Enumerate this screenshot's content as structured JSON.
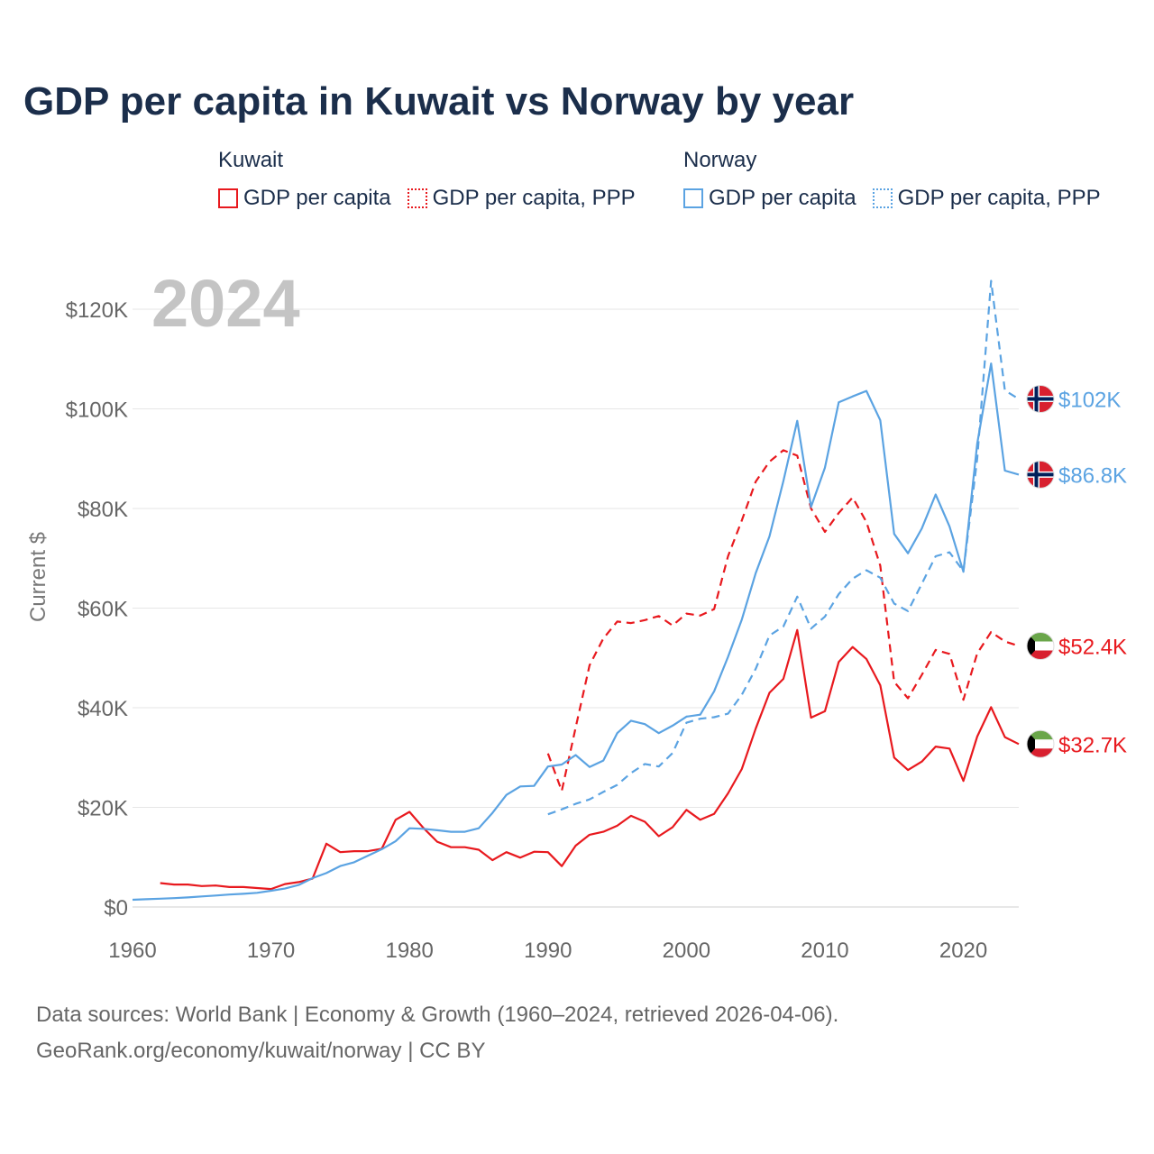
{
  "title": "GDP per capita in Kuwait vs Norway by year",
  "legend": [
    {
      "country": "Kuwait",
      "items": [
        "GDP per capita",
        "GDP per capita, PPP"
      ],
      "color": "#e8191e"
    },
    {
      "country": "Norway",
      "items": [
        "GDP per capita",
        "GDP per capita, PPP"
      ],
      "color": "#5ba3e2"
    }
  ],
  "year_watermark": "2024",
  "footer": {
    "line1": "Data sources: World Bank | Economy & Growth (1960–2024, retrieved 2026-04-06).",
    "line2": "GeoRank.org/economy/kuwait/norway | CC BY"
  },
  "chart_data": {
    "type": "line",
    "title": "GDP per capita in Kuwait vs Norway by year",
    "xlabel": "",
    "ylabel": "Current $",
    "xlim": [
      1960,
      2024
    ],
    "ylim": [
      0,
      120000
    ],
    "x_ticks": [
      1960,
      1970,
      1980,
      1990,
      2000,
      2010,
      2020
    ],
    "x_tick_labels": [
      "1960",
      "1970",
      "1980",
      "1990",
      "2000",
      "2010",
      "2020"
    ],
    "y_ticks": [
      0,
      20000,
      40000,
      60000,
      80000,
      100000,
      120000
    ],
    "y_tick_labels": [
      "$0",
      "$20K",
      "$40K",
      "$60K",
      "$80K",
      "$100K",
      "$120K"
    ],
    "series": [
      {
        "name": "Kuwait GDP per capita",
        "color": "#e8191e",
        "dash": "solid",
        "end_label": "$32.7K",
        "points": [
          [
            1962,
            4800
          ],
          [
            1963,
            4500
          ],
          [
            1964,
            4500
          ],
          [
            1965,
            4200
          ],
          [
            1966,
            4300
          ],
          [
            1967,
            4000
          ],
          [
            1968,
            4000
          ],
          [
            1969,
            3800
          ],
          [
            1970,
            3600
          ],
          [
            1971,
            4600
          ],
          [
            1972,
            5000
          ],
          [
            1973,
            5700
          ],
          [
            1974,
            12700
          ],
          [
            1975,
            11000
          ],
          [
            1976,
            11200
          ],
          [
            1977,
            11200
          ],
          [
            1978,
            11700
          ],
          [
            1979,
            17500
          ],
          [
            1980,
            19100
          ],
          [
            1981,
            15900
          ],
          [
            1982,
            13100
          ],
          [
            1983,
            12000
          ],
          [
            1984,
            12000
          ],
          [
            1985,
            11500
          ],
          [
            1986,
            9400
          ],
          [
            1987,
            11000
          ],
          [
            1988,
            9900
          ],
          [
            1989,
            11100
          ],
          [
            1990,
            11000
          ],
          [
            1991,
            8200
          ],
          [
            1992,
            12300
          ],
          [
            1993,
            14500
          ],
          [
            1994,
            15100
          ],
          [
            1995,
            16300
          ],
          [
            1996,
            18300
          ],
          [
            1997,
            17100
          ],
          [
            1998,
            14200
          ],
          [
            1999,
            16000
          ],
          [
            2000,
            19500
          ],
          [
            2001,
            17500
          ],
          [
            2002,
            18700
          ],
          [
            2003,
            22800
          ],
          [
            2004,
            27700
          ],
          [
            2005,
            35800
          ],
          [
            2006,
            43000
          ],
          [
            2007,
            45800
          ],
          [
            2008,
            55600
          ],
          [
            2009,
            38000
          ],
          [
            2010,
            39300
          ],
          [
            2011,
            49200
          ],
          [
            2012,
            52200
          ],
          [
            2013,
            49800
          ],
          [
            2014,
            44500
          ],
          [
            2015,
            30000
          ],
          [
            2016,
            27500
          ],
          [
            2017,
            29200
          ],
          [
            2018,
            32200
          ],
          [
            2019,
            31800
          ],
          [
            2020,
            25300
          ],
          [
            2021,
            34200
          ],
          [
            2022,
            40100
          ],
          [
            2023,
            34100
          ],
          [
            2024,
            32700
          ]
        ]
      },
      {
        "name": "Kuwait GDP per capita, PPP",
        "color": "#e8191e",
        "dash": "dashed",
        "end_label": "$52.4K",
        "points": [
          [
            1990,
            30800
          ],
          [
            1991,
            23300
          ],
          [
            1992,
            36000
          ],
          [
            1993,
            48500
          ],
          [
            1994,
            53900
          ],
          [
            1995,
            57300
          ],
          [
            1996,
            57000
          ],
          [
            1997,
            57600
          ],
          [
            1998,
            58400
          ],
          [
            1999,
            56500
          ],
          [
            2000,
            58900
          ],
          [
            2001,
            58500
          ],
          [
            2002,
            59800
          ],
          [
            2003,
            70400
          ],
          [
            2004,
            77600
          ],
          [
            2005,
            85400
          ],
          [
            2006,
            89400
          ],
          [
            2007,
            91700
          ],
          [
            2008,
            90600
          ],
          [
            2009,
            80000
          ],
          [
            2010,
            75300
          ],
          [
            2011,
            79100
          ],
          [
            2012,
            82200
          ],
          [
            2013,
            77300
          ],
          [
            2014,
            68500
          ],
          [
            2015,
            45200
          ],
          [
            2016,
            41900
          ],
          [
            2017,
            46600
          ],
          [
            2018,
            51600
          ],
          [
            2019,
            50800
          ],
          [
            2020,
            41600
          ],
          [
            2021,
            50900
          ],
          [
            2022,
            55200
          ],
          [
            2023,
            53300
          ],
          [
            2024,
            52400
          ]
        ]
      },
      {
        "name": "Norway GDP per capita",
        "color": "#5ba3e2",
        "dash": "solid",
        "end_label": "$86.8K",
        "points": [
          [
            1960,
            1450
          ],
          [
            1961,
            1560
          ],
          [
            1962,
            1670
          ],
          [
            1963,
            1780
          ],
          [
            1964,
            1920
          ],
          [
            1965,
            2110
          ],
          [
            1966,
            2290
          ],
          [
            1967,
            2490
          ],
          [
            1968,
            2640
          ],
          [
            1969,
            2840
          ],
          [
            1970,
            3260
          ],
          [
            1971,
            3690
          ],
          [
            1972,
            4420
          ],
          [
            1973,
            5790
          ],
          [
            1974,
            6800
          ],
          [
            1975,
            8210
          ],
          [
            1976,
            8980
          ],
          [
            1977,
            10300
          ],
          [
            1978,
            11600
          ],
          [
            1979,
            13200
          ],
          [
            1980,
            15800
          ],
          [
            1981,
            15700
          ],
          [
            1982,
            15400
          ],
          [
            1983,
            15100
          ],
          [
            1984,
            15100
          ],
          [
            1985,
            15800
          ],
          [
            1986,
            18900
          ],
          [
            1987,
            22500
          ],
          [
            1988,
            24200
          ],
          [
            1989,
            24300
          ],
          [
            1990,
            28200
          ],
          [
            1991,
            28600
          ],
          [
            1992,
            30500
          ],
          [
            1993,
            28100
          ],
          [
            1994,
            29400
          ],
          [
            1995,
            34900
          ],
          [
            1996,
            37400
          ],
          [
            1997,
            36700
          ],
          [
            1998,
            34900
          ],
          [
            1999,
            36400
          ],
          [
            2000,
            38200
          ],
          [
            2001,
            38600
          ],
          [
            2002,
            43300
          ],
          [
            2003,
            50200
          ],
          [
            2004,
            57700
          ],
          [
            2005,
            67000
          ],
          [
            2006,
            74400
          ],
          [
            2007,
            85500
          ],
          [
            2008,
            97600
          ],
          [
            2009,
            80300
          ],
          [
            2010,
            88200
          ],
          [
            2011,
            101300
          ],
          [
            2012,
            102500
          ],
          [
            2013,
            103600
          ],
          [
            2014,
            97700
          ],
          [
            2015,
            74900
          ],
          [
            2016,
            71000
          ],
          [
            2017,
            76000
          ],
          [
            2018,
            82800
          ],
          [
            2019,
            76400
          ],
          [
            2020,
            67300
          ],
          [
            2021,
            93000
          ],
          [
            2022,
            109100
          ],
          [
            2023,
            87600
          ],
          [
            2024,
            86800
          ]
        ]
      },
      {
        "name": "Norway GDP per capita, PPP",
        "color": "#5ba3e2",
        "dash": "dashed",
        "end_label": "$102K",
        "points": [
          [
            1990,
            18600
          ],
          [
            1991,
            19600
          ],
          [
            1992,
            20700
          ],
          [
            1993,
            21600
          ],
          [
            1994,
            23100
          ],
          [
            1995,
            24500
          ],
          [
            1996,
            26900
          ],
          [
            1997,
            28700
          ],
          [
            1998,
            28200
          ],
          [
            1999,
            30900
          ],
          [
            2000,
            37000
          ],
          [
            2001,
            37800
          ],
          [
            2002,
            38100
          ],
          [
            2003,
            38800
          ],
          [
            2004,
            42600
          ],
          [
            2005,
            47800
          ],
          [
            2006,
            54500
          ],
          [
            2007,
            56300
          ],
          [
            2008,
            62300
          ],
          [
            2009,
            55900
          ],
          [
            2010,
            58300
          ],
          [
            2011,
            62800
          ],
          [
            2012,
            65900
          ],
          [
            2013,
            67600
          ],
          [
            2014,
            66100
          ],
          [
            2015,
            60900
          ],
          [
            2016,
            59400
          ],
          [
            2017,
            64900
          ],
          [
            2018,
            70400
          ],
          [
            2019,
            71200
          ],
          [
            2020,
            67400
          ],
          [
            2021,
            90000
          ],
          [
            2022,
            125700
          ],
          [
            2023,
            103700
          ],
          [
            2024,
            102000
          ]
        ]
      }
    ]
  }
}
